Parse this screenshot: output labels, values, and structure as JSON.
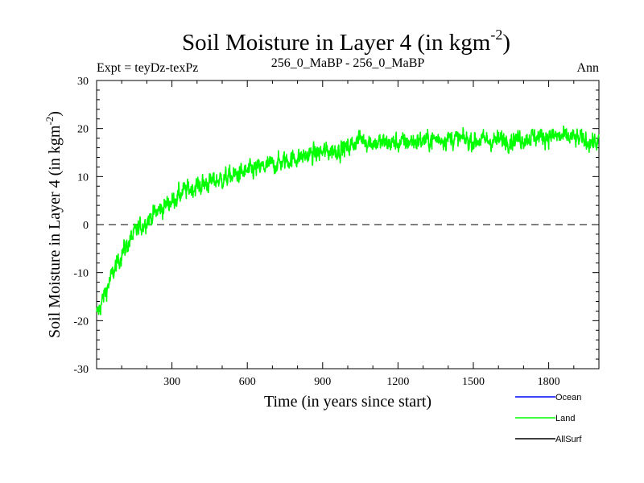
{
  "chart_data": {
    "type": "line",
    "title": "Soil Moisture in Layer 4 (in kgm",
    "title_sup": "-2",
    "title_close": ")",
    "subtitle_left": "Expt = teyDz-texPz",
    "subtitle_center": "256_0_MaBP - 256_0_MaBP",
    "subtitle_right": "Ann",
    "xlabel": "Time (in years since start)",
    "ylabel": "Soil Moisture in Layer 4 (in kgm",
    "ylabel_sup": "-2",
    "ylabel_close": ")",
    "xlim": [
      0,
      2000
    ],
    "ylim": [
      -30,
      30
    ],
    "xticks": [
      300,
      600,
      900,
      1200,
      1500,
      1800
    ],
    "xtick_labels": [
      "300",
      "600",
      "900",
      "1200",
      "1500",
      "1800"
    ],
    "yticks": [
      -30,
      -20,
      -10,
      0,
      10,
      20,
      30
    ],
    "ytick_labels": [
      "-30",
      "-20",
      "-10",
      "0",
      "10",
      "20",
      "30"
    ],
    "zero_line": 0,
    "series": [
      {
        "name": "Land",
        "color": "#00ff00",
        "trend": {
          "x": [
            0,
            50,
            100,
            150,
            200,
            250,
            300,
            350,
            400,
            500,
            600,
            700,
            800,
            900,
            1000,
            1050,
            1100,
            1200,
            1300,
            1400,
            1500,
            1600,
            1700,
            1800,
            1900,
            2000
          ],
          "y": [
            -19,
            -12,
            -6,
            -2,
            1,
            3,
            5,
            7,
            8,
            9.5,
            11,
            12.5,
            14,
            15,
            16,
            18,
            17,
            17,
            17.5,
            18,
            17.5,
            17.5,
            18,
            18.5,
            18,
            17
          ]
        },
        "noise_amplitude": 2.6
      },
      {
        "name": "Ocean",
        "color": "#0000ff",
        "values": []
      },
      {
        "name": "AllSurf",
        "color": "#000000",
        "values": []
      }
    ],
    "legend": [
      {
        "label": "Ocean",
        "color": "#0000ff"
      },
      {
        "label": "Land",
        "color": "#00ff00"
      },
      {
        "label": "AllSurf",
        "color": "#000000"
      }
    ]
  }
}
